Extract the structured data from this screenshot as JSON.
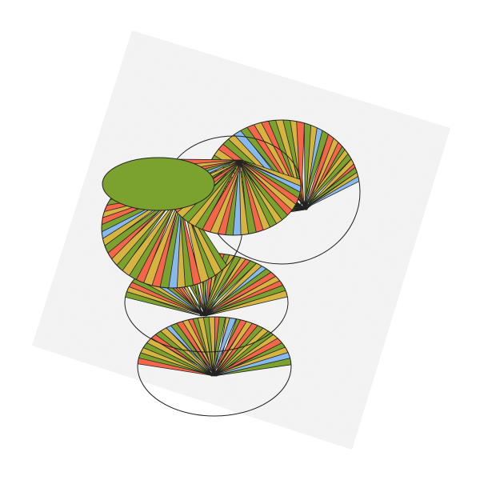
{
  "palette": {
    "red": "#f4654a",
    "olive": "#7ba22e",
    "mustard": "#d6b43f",
    "blue": "#86b9ee",
    "outline": "#222222",
    "background": "#ffffff",
    "ground": "#f1f1f1"
  },
  "stripe_sequence": [
    "red",
    "olive",
    "mustard",
    "olive",
    "mustard",
    "red",
    "olive",
    "mustard",
    "blue",
    "olive",
    "red",
    "mustard"
  ]
}
